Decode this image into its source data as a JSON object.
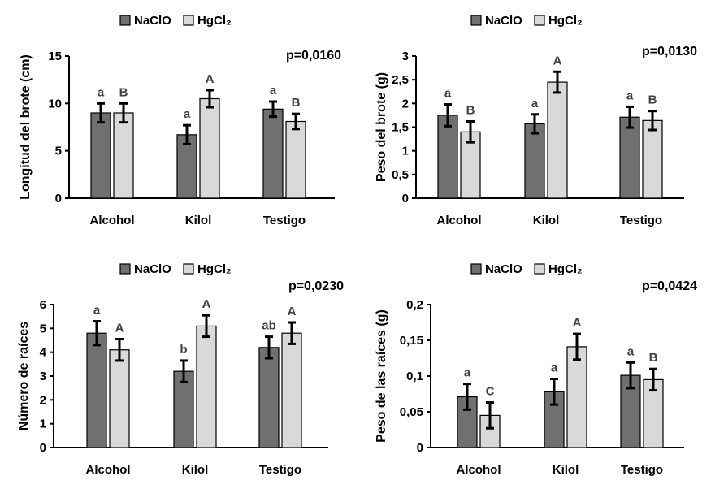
{
  "colors": {
    "NaClO": "#707070",
    "HgCl2": "#d9d9d9",
    "axis": "#000000",
    "edge": "#000000",
    "sig_text": "#404040"
  },
  "chart_data": [
    {
      "type": "bar",
      "categories": [
        "Alcohol",
        "Kilol",
        "Testigo"
      ],
      "series": [
        {
          "name": "NaClO",
          "values": [
            9.0,
            6.7,
            9.4
          ],
          "errors": [
            1.0,
            1.0,
            0.8
          ],
          "labels": [
            "a",
            "a",
            "a"
          ]
        },
        {
          "name": "HgCl₂",
          "values": [
            9.0,
            10.5,
            8.1
          ],
          "errors": [
            1.0,
            0.9,
            0.8
          ],
          "labels": [
            "B",
            "A",
            "B"
          ]
        }
      ],
      "ylabel": "Longitud del brote (cm)",
      "ylim": [
        0,
        15
      ],
      "yticks": [
        "0",
        "5",
        "10",
        "15"
      ],
      "pvalue": "p=0,0160",
      "legend": "top-center",
      "grid": false
    },
    {
      "type": "bar",
      "categories": [
        "Alcohol",
        "Kilol",
        "Testigo"
      ],
      "series": [
        {
          "name": "NaClO",
          "values": [
            1.75,
            1.57,
            1.71
          ],
          "errors": [
            0.23,
            0.2,
            0.22
          ],
          "labels": [
            "a",
            "a",
            "a"
          ]
        },
        {
          "name": "HgCl₂",
          "values": [
            1.4,
            2.45,
            1.64
          ],
          "errors": [
            0.22,
            0.22,
            0.2
          ],
          "labels": [
            "B",
            "A",
            "B"
          ]
        }
      ],
      "ylabel": "Peso del brote (g)",
      "ylim": [
        0,
        3
      ],
      "yticks": [
        "0",
        "0,5",
        "1",
        "1,5",
        "2",
        "2,5",
        "3"
      ],
      "pvalue": "p=0,0130",
      "legend": "top-center",
      "grid": false
    },
    {
      "type": "bar",
      "categories": [
        "Alcohol",
        "Kilol",
        "Testigo"
      ],
      "series": [
        {
          "name": "NaClO",
          "values": [
            4.8,
            3.2,
            4.2
          ],
          "errors": [
            0.5,
            0.45,
            0.45
          ],
          "labels": [
            "a",
            "b",
            "ab"
          ]
        },
        {
          "name": "HgCl₂",
          "values": [
            4.1,
            5.1,
            4.8
          ],
          "errors": [
            0.45,
            0.45,
            0.45
          ],
          "labels": [
            "A",
            "A",
            "A"
          ]
        }
      ],
      "ylabel": "Número de raíces",
      "ylim": [
        0,
        6
      ],
      "yticks": [
        "0",
        "1",
        "2",
        "3",
        "4",
        "5",
        "6"
      ],
      "pvalue": "p=0,0230",
      "legend": "top-center",
      "grid": false
    },
    {
      "type": "bar",
      "categories": [
        "Alcohol",
        "Kilol",
        "Testigo"
      ],
      "series": [
        {
          "name": "NaClO",
          "values": [
            0.071,
            0.078,
            0.101
          ],
          "errors": [
            0.018,
            0.018,
            0.018
          ],
          "labels": [
            "a",
            "a",
            "a"
          ]
        },
        {
          "name": "HgCl₂",
          "values": [
            0.045,
            0.141,
            0.095
          ],
          "errors": [
            0.018,
            0.018,
            0.015
          ],
          "labels": [
            "C",
            "A",
            "B"
          ]
        }
      ],
      "ylabel": "Peso de las raíces (g)",
      "ylim": [
        0,
        0.2
      ],
      "yticks": [
        "0",
        "0,05",
        "0,1",
        "0,15",
        "0,2"
      ],
      "pvalue": "p=0,0424",
      "legend": "top-center",
      "grid": false
    }
  ]
}
